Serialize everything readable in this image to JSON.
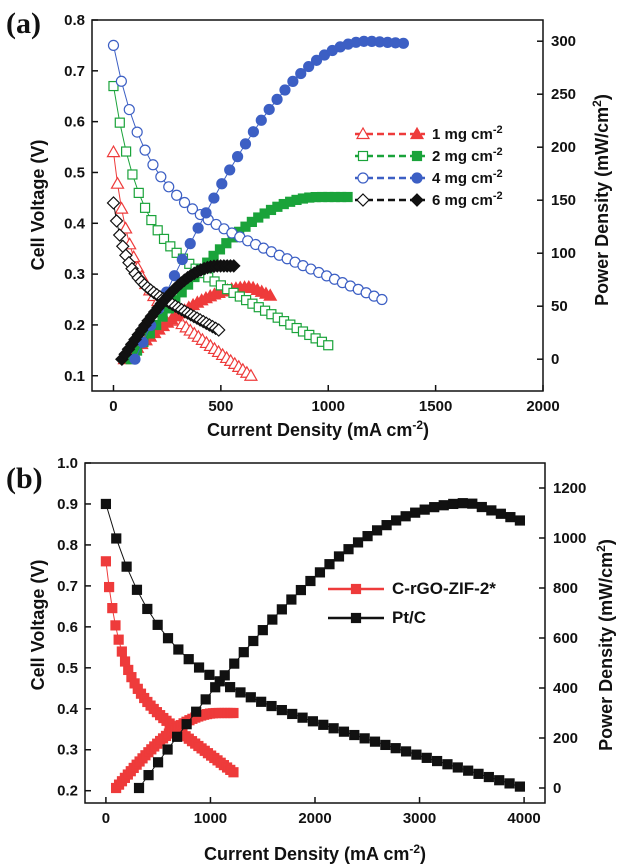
{
  "chart_data": [
    {
      "panel": "(a)",
      "type": "line",
      "xlabel": "Current Density (mA cm",
      "xlabel_sup": "-2",
      "xlabel_end": ")",
      "ylabel": "Cell Voltage (V)",
      "y2label": "Power Density (mW/cm",
      "y2label_sup": "2",
      "y2label_end": ")",
      "xlim": [
        -100,
        2000
      ],
      "ylim": [
        0.07,
        0.8
      ],
      "y2lim": [
        -30,
        320
      ],
      "xticks": [
        0,
        500,
        1000,
        1500,
        2000
      ],
      "yticks": [
        0.1,
        0.2,
        0.3,
        0.4,
        0.5,
        0.6,
        0.7,
        0.8
      ],
      "y2ticks": [
        0,
        50,
        100,
        150,
        200,
        250,
        300
      ],
      "legend_position": "right",
      "series": [
        {
          "name": "1 mg cm",
          "name_sup": "-2",
          "color": "#ee3b3b",
          "marker": "triangle",
          "polarization_end": 640,
          "power_end": 730,
          "v0": 0.54,
          "vend": 0.1,
          "p_peak": 68,
          "p_end": 60
        },
        {
          "name": "2 mg cm",
          "name_sup": "-2",
          "color": "#1aa33a",
          "marker": "square",
          "polarization_end": 1000,
          "power_end": 1090,
          "v0": 0.67,
          "vend": 0.16,
          "p_peak": 153,
          "p_end": 153
        },
        {
          "name": "4 mg cm",
          "name_sup": "-2",
          "color": "#3c5fc4",
          "marker": "circle",
          "polarization_end": 1250,
          "power_end": 1350,
          "v0": 0.75,
          "vend": 0.25,
          "p_peak": 300,
          "p_end": 298
        },
        {
          "name": "6 mg cm",
          "name_sup": "-2",
          "color": "#111111",
          "marker": "diamond",
          "polarization_end": 490,
          "power_end": 560,
          "v0": 0.44,
          "vend": 0.19,
          "p_peak": 88,
          "p_end": 88
        }
      ]
    },
    {
      "panel": "(b)",
      "type": "line",
      "xlabel": "Current Density (mA cm",
      "xlabel_sup": "-2",
      "xlabel_end": ")",
      "ylabel": "Cell Voltage (V)",
      "y2label": "Power Density (mW/cm",
      "y2label_sup": "2",
      "y2label_end": ")",
      "xlim": [
        -200,
        4200
      ],
      "ylim": [
        0.17,
        1.0
      ],
      "y2lim": [
        -60,
        1300
      ],
      "xticks": [
        0,
        1000,
        2000,
        3000,
        4000
      ],
      "yticks": [
        0.2,
        0.3,
        0.4,
        0.5,
        0.6,
        0.7,
        0.8,
        0.9,
        1.0
      ],
      "y2ticks": [
        0,
        200,
        400,
        600,
        800,
        1000,
        1200
      ],
      "legend_position": "right",
      "series": [
        {
          "name": "C-rGO-ZIF-2*",
          "color": "#ee3b3b",
          "marker": "square",
          "polarization_end": 1220,
          "power_end": 1220,
          "v0": 0.76,
          "vend": 0.245,
          "p_peak": 300,
          "p_end": 300
        },
        {
          "name": "Pt/C",
          "color": "#111111",
          "marker": "square",
          "polarization_end": 3960,
          "power_end": 3960,
          "v0": 0.9,
          "vend": 0.21,
          "p_peak": 1140,
          "p_end": 1070
        }
      ]
    }
  ]
}
